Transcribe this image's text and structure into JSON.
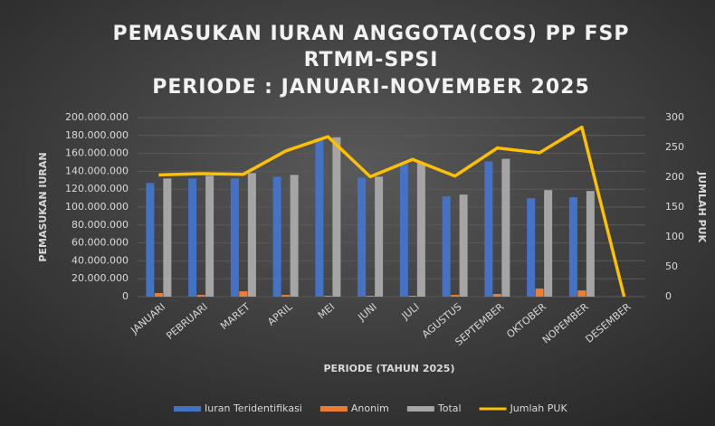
{
  "chart_data": {
    "type": "bar",
    "title": [
      "PEMASUKAN IURAN ANGGOTA(COS)  PP FSP",
      "RTMM-SPSI",
      "PERIODE : JANUARI-NOVEMBER 2025"
    ],
    "x_label": "PERIODE (TAHUN 2025)",
    "y_label": "PEMASUKAN IURAN",
    "y2_label": "JUMLAH PUK",
    "categories": [
      "JANUARI",
      "PEBRUARI",
      "MARET",
      "APRIL",
      "MEI",
      "JUNI",
      "JULI",
      "AGUSTUS",
      "SEPTEMBER",
      "OKTOBER",
      "NOPEMBER",
      "DESEMBER"
    ],
    "series": [
      {
        "name": "Iuran Teridentifikasi",
        "color": "#4472c4",
        "type": "bar",
        "values": [
          127000000,
          132000000,
          132000000,
          134000000,
          177000000,
          133000000,
          148000000,
          112000000,
          151000000,
          110000000,
          111000000,
          0
        ]
      },
      {
        "name": "Anonim",
        "color": "#ed7d31",
        "type": "bar",
        "values": [
          4000000,
          2000000,
          6000000,
          2000000,
          1000000,
          1000000,
          1000000,
          2000000,
          3000000,
          9000000,
          7000000,
          0
        ]
      },
      {
        "name": "Total",
        "color": "#a5a5a5",
        "type": "bar",
        "values": [
          132000000,
          135000000,
          138000000,
          136000000,
          178000000,
          134000000,
          149000000,
          114000000,
          154000000,
          119000000,
          118000000,
          0
        ]
      },
      {
        "name": "Jumlah PUK",
        "color": "#ffc000",
        "type": "line",
        "axis": "y2",
        "values": [
          204,
          206,
          205,
          244,
          268,
          201,
          230,
          202,
          249,
          241,
          284,
          0
        ]
      }
    ],
    "ylim": [
      0,
      200000000
    ],
    "yticks": [
      {
        "value": 0,
        "label": "0"
      },
      {
        "value": 20000000,
        "label": "20.000.000"
      },
      {
        "value": 40000000,
        "label": "40.000.000"
      },
      {
        "value": 60000000,
        "label": "60.000.000"
      },
      {
        "value": 80000000,
        "label": "80.000.000"
      },
      {
        "value": 100000000,
        "label": "100.000.000"
      },
      {
        "value": 120000000,
        "label": "120.000.000"
      },
      {
        "value": 140000000,
        "label": "140.000.000"
      },
      {
        "value": 160000000,
        "label": "160.000.000"
      },
      {
        "value": 180000000,
        "label": "180.000.000"
      },
      {
        "value": 200000000,
        "label": "200.000.000"
      }
    ],
    "y2lim": [
      0,
      300
    ],
    "y2ticks": [
      0,
      50,
      100,
      150,
      200,
      250,
      300
    ],
    "grid": true,
    "legend": "bottom"
  }
}
